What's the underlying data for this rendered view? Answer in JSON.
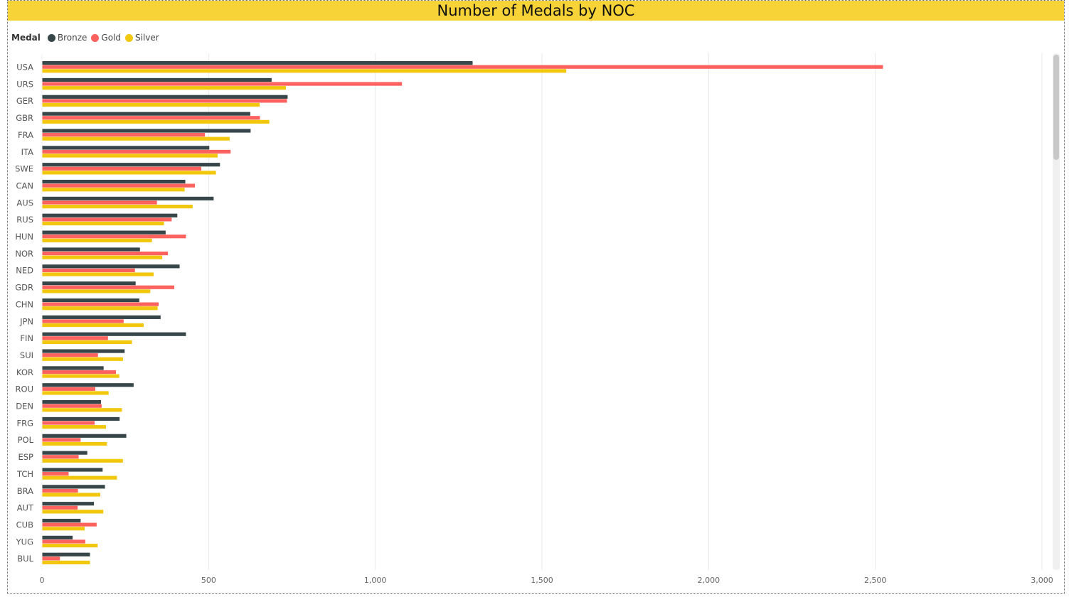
{
  "title": "Number of Medals by NOC",
  "legend": {
    "label": "Medal",
    "items": [
      {
        "name": "Bronze",
        "color": "#374649"
      },
      {
        "name": "Gold",
        "color": "#FD625E"
      },
      {
        "name": "Silver",
        "color": "#F2C80F"
      }
    ]
  },
  "chart_data": {
    "type": "bar",
    "orientation": "horizontal",
    "categories": [
      "USA",
      "URS",
      "GER",
      "GBR",
      "FRA",
      "ITA",
      "SWE",
      "CAN",
      "AUS",
      "RUS",
      "HUN",
      "NOR",
      "NED",
      "GDR",
      "CHN",
      "JPN",
      "FIN",
      "SUI",
      "KOR",
      "ROU",
      "DEN",
      "FRG",
      "POL",
      "ESP",
      "TCH",
      "BRA",
      "AUT",
      "CUB",
      "YUG",
      "BUL"
    ],
    "series": [
      {
        "name": "Bronze",
        "color": "#374649",
        "values": [
          1292,
          689,
          737,
          625,
          626,
          502,
          534,
          430,
          515,
          406,
          371,
          294,
          413,
          281,
          292,
          356,
          432,
          248,
          185,
          275,
          177,
          233,
          253,
          136,
          182,
          189,
          156,
          116,
          92,
          144
        ]
      },
      {
        "name": "Gold",
        "color": "#FD625E",
        "values": [
          2523,
          1080,
          735,
          654,
          489,
          566,
          478,
          459,
          345,
          389,
          432,
          378,
          279,
          397,
          350,
          245,
          198,
          168,
          222,
          160,
          179,
          158,
          116,
          110,
          80,
          108,
          107,
          164,
          130,
          54
        ]
      },
      {
        "name": "Silver",
        "color": "#F2C80F",
        "values": [
          1573,
          732,
          653,
          682,
          563,
          527,
          522,
          428,
          452,
          366,
          330,
          361,
          335,
          325,
          347,
          305,
          270,
          243,
          232,
          200,
          240,
          192,
          195,
          243,
          225,
          175,
          184,
          128,
          167,
          144
        ]
      }
    ],
    "x_ticks": [
      "0",
      "500",
      "1,000",
      "1,500",
      "2,000",
      "2,500",
      "3,000"
    ],
    "x_tick_values": [
      0,
      500,
      1000,
      1500,
      2000,
      2500,
      3000
    ],
    "xlim": [
      0,
      3000
    ],
    "grid": true,
    "legend_position": "top-left"
  }
}
